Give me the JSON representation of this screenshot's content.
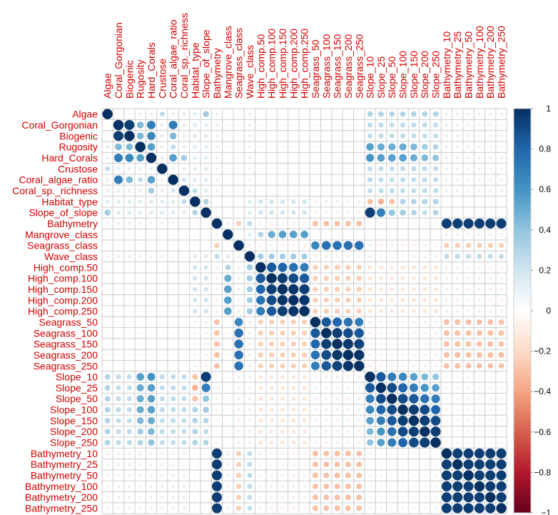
{
  "chart_data": {
    "type": "heatmap",
    "title": "",
    "variables": [
      "Algae",
      "Coral_Gorgonian",
      "Biogenic",
      "Rugosity",
      "Hard_Corals",
      "Crustose",
      "Coral_algae_ratio",
      "Coral_sp._richness",
      "Habitat_type",
      "Slope_of_slope",
      "Bathymetry",
      "Mangrove_class",
      "Seagrass_class",
      "Wave_class",
      "High_comp.50",
      "High_comp.100",
      "High_comp.150",
      "High_comp.200",
      "High_comp.250",
      "Seagrass_50",
      "Seagrass_100",
      "Seagrass_150",
      "Seagrass_200",
      "Seagrass_250",
      "Slope_10",
      "Slope_25",
      "Slope_50",
      "Slope_100",
      "Slope_150",
      "Slope_200",
      "Slope_250",
      "Bathymetry_10",
      "Bathymetry_25",
      "Bathymetry_50",
      "Bathymetry_100",
      "Bathymetry_200",
      "Bathymetry_250"
    ],
    "groups": {
      "bio": [
        0,
        1,
        2,
        3,
        4,
        5,
        6,
        7
      ],
      "habslope": [
        8,
        9
      ],
      "bath": [
        10,
        31,
        32,
        33,
        34,
        35,
        36
      ],
      "mang": [
        11
      ],
      "seacls": [
        12
      ],
      "wave": [
        13
      ],
      "high": [
        14,
        15,
        16,
        17,
        18
      ],
      "sea": [
        19,
        20,
        21,
        22,
        23
      ],
      "slope": [
        24,
        25,
        26,
        27,
        28,
        29,
        30
      ]
    },
    "group_corr": {
      "bio-bio": 0.12,
      "bio-habslope": 0.15,
      "bio-bath": 0.1,
      "bio-mang": 0.05,
      "bio-seacls": -0.05,
      "bio-wave": 0.1,
      "bio-high": 0.05,
      "bio-sea": -0.05,
      "bio-slope": 0.25,
      "habslope-habslope": 0.3,
      "habslope-bath": 0.05,
      "habslope-mang": 0.05,
      "habslope-seacls": -0.05,
      "habslope-wave": 0.15,
      "habslope-high": 0.2,
      "habslope-sea": -0.1,
      "habslope-slope": 0.3,
      "bath-bath": 0.95,
      "bath-mang": 0.1,
      "bath-seacls": -0.25,
      "bath-wave": 0.25,
      "bath-high": -0.1,
      "bath-sea": -0.3,
      "bath-slope": -0.08,
      "mang-seacls": 0.05,
      "mang-wave": 0.15,
      "mang-high": 0.4,
      "mang-sea": 0.05,
      "mang-slope": 0.05,
      "seacls-wave": -0.1,
      "seacls-high": -0.1,
      "seacls-sea": 0.7,
      "seacls-slope": -0.1,
      "wave-high": 0.35,
      "wave-sea": -0.1,
      "wave-slope": 0.1,
      "high-high": 0.9,
      "high-sea": -0.25,
      "high-slope": -0.15,
      "sea-sea": 0.9,
      "sea-slope": -0.1,
      "slope-slope": 0.85
    },
    "overrides": [
      [
        0,
        1,
        0.02
      ],
      [
        0,
        2,
        -0.05
      ],
      [
        0,
        5,
        0.25
      ],
      [
        0,
        9,
        0.35
      ],
      [
        0,
        24,
        0.3
      ],
      [
        0,
        25,
        0.3
      ],
      [
        0,
        26,
        0.3
      ],
      [
        0,
        27,
        0.3
      ],
      [
        0,
        28,
        0.3
      ],
      [
        0,
        29,
        0.3
      ],
      [
        0,
        30,
        0.3
      ],
      [
        1,
        2,
        0.95
      ],
      [
        1,
        3,
        0.45
      ],
      [
        1,
        4,
        0.7
      ],
      [
        1,
        6,
        0.7
      ],
      [
        2,
        3,
        0.45
      ],
      [
        2,
        4,
        0.65
      ],
      [
        2,
        6,
        0.45
      ],
      [
        3,
        4,
        0.55
      ],
      [
        3,
        6,
        0.25
      ],
      [
        3,
        24,
        0.55
      ],
      [
        3,
        25,
        0.5
      ],
      [
        3,
        26,
        0.5
      ],
      [
        3,
        27,
        0.5
      ],
      [
        3,
        28,
        0.45
      ],
      [
        3,
        29,
        0.35
      ],
      [
        3,
        30,
        0.3
      ],
      [
        4,
        6,
        0.55
      ],
      [
        4,
        7,
        0.35
      ],
      [
        4,
        24,
        0.6
      ],
      [
        4,
        25,
        0.55
      ],
      [
        4,
        26,
        0.55
      ],
      [
        4,
        27,
        0.55
      ],
      [
        4,
        28,
        0.5
      ],
      [
        4,
        29,
        0.45
      ],
      [
        4,
        30,
        0.4
      ],
      [
        5,
        6,
        0.1
      ],
      [
        6,
        7,
        0.2
      ],
      [
        7,
        8,
        0.25
      ],
      [
        8,
        9,
        0.3
      ],
      [
        8,
        24,
        -0.3
      ],
      [
        8,
        25,
        -0.35
      ],
      [
        8,
        26,
        -0.3
      ],
      [
        9,
        24,
        0.95
      ],
      [
        9,
        25,
        0.7
      ],
      [
        9,
        26,
        0.4
      ],
      [
        9,
        27,
        0.35
      ],
      [
        9,
        28,
        0.3
      ],
      [
        9,
        29,
        0.25
      ],
      [
        11,
        14,
        0.3
      ],
      [
        11,
        15,
        0.5
      ],
      [
        11,
        16,
        0.55
      ],
      [
        11,
        17,
        0.55
      ],
      [
        11,
        18,
        0.55
      ],
      [
        12,
        19,
        0.65
      ],
      [
        12,
        20,
        0.75
      ],
      [
        12,
        21,
        0.75
      ],
      [
        12,
        22,
        0.75
      ],
      [
        12,
        23,
        0.75
      ],
      [
        13,
        14,
        0.35
      ],
      [
        13,
        15,
        0.35
      ],
      [
        13,
        16,
        0.35
      ],
      [
        13,
        17,
        0.35
      ],
      [
        13,
        18,
        0.35
      ],
      [
        14,
        15,
        0.85
      ],
      [
        14,
        16,
        0.8
      ],
      [
        14,
        17,
        0.75
      ],
      [
        14,
        18,
        0.7
      ],
      [
        15,
        16,
        0.95
      ],
      [
        15,
        17,
        0.9
      ],
      [
        15,
        18,
        0.85
      ],
      [
        16,
        17,
        0.98
      ],
      [
        16,
        18,
        0.95
      ],
      [
        17,
        18,
        0.98
      ],
      [
        19,
        20,
        0.85
      ],
      [
        19,
        21,
        0.8
      ],
      [
        19,
        22,
        0.75
      ],
      [
        19,
        23,
        0.7
      ],
      [
        20,
        21,
        0.95
      ],
      [
        20,
        22,
        0.9
      ],
      [
        20,
        23,
        0.85
      ],
      [
        21,
        22,
        0.97
      ],
      [
        21,
        23,
        0.93
      ],
      [
        22,
        23,
        0.98
      ],
      [
        24,
        25,
        0.85
      ],
      [
        24,
        26,
        0.7
      ],
      [
        24,
        27,
        0.65
      ],
      [
        24,
        28,
        0.55
      ],
      [
        24,
        29,
        0.45
      ],
      [
        24,
        30,
        0.4
      ],
      [
        25,
        26,
        0.9
      ],
      [
        25,
        27,
        0.8
      ],
      [
        25,
        28,
        0.7
      ],
      [
        25,
        29,
        0.6
      ],
      [
        25,
        30,
        0.55
      ],
      [
        26,
        27,
        0.9
      ],
      [
        26,
        28,
        0.85
      ],
      [
        26,
        29,
        0.75
      ],
      [
        26,
        30,
        0.7
      ],
      [
        27,
        28,
        0.95
      ],
      [
        27,
        29,
        0.9
      ],
      [
        27,
        30,
        0.8
      ],
      [
        28,
        29,
        0.95
      ],
      [
        28,
        30,
        0.9
      ],
      [
        29,
        30,
        0.95
      ]
    ],
    "colorbar": {
      "ticks": [
        1,
        0.8,
        0.6,
        0.4,
        0.2,
        0,
        -0.2,
        -0.4,
        -0.6,
        -0.8,
        -1
      ],
      "range": [
        -1,
        1
      ]
    },
    "colors": {
      "neg": "#67001f",
      "mid": "#ffffff",
      "pos": "#053061",
      "label": "#d40000",
      "grid": "#cccccc"
    }
  }
}
